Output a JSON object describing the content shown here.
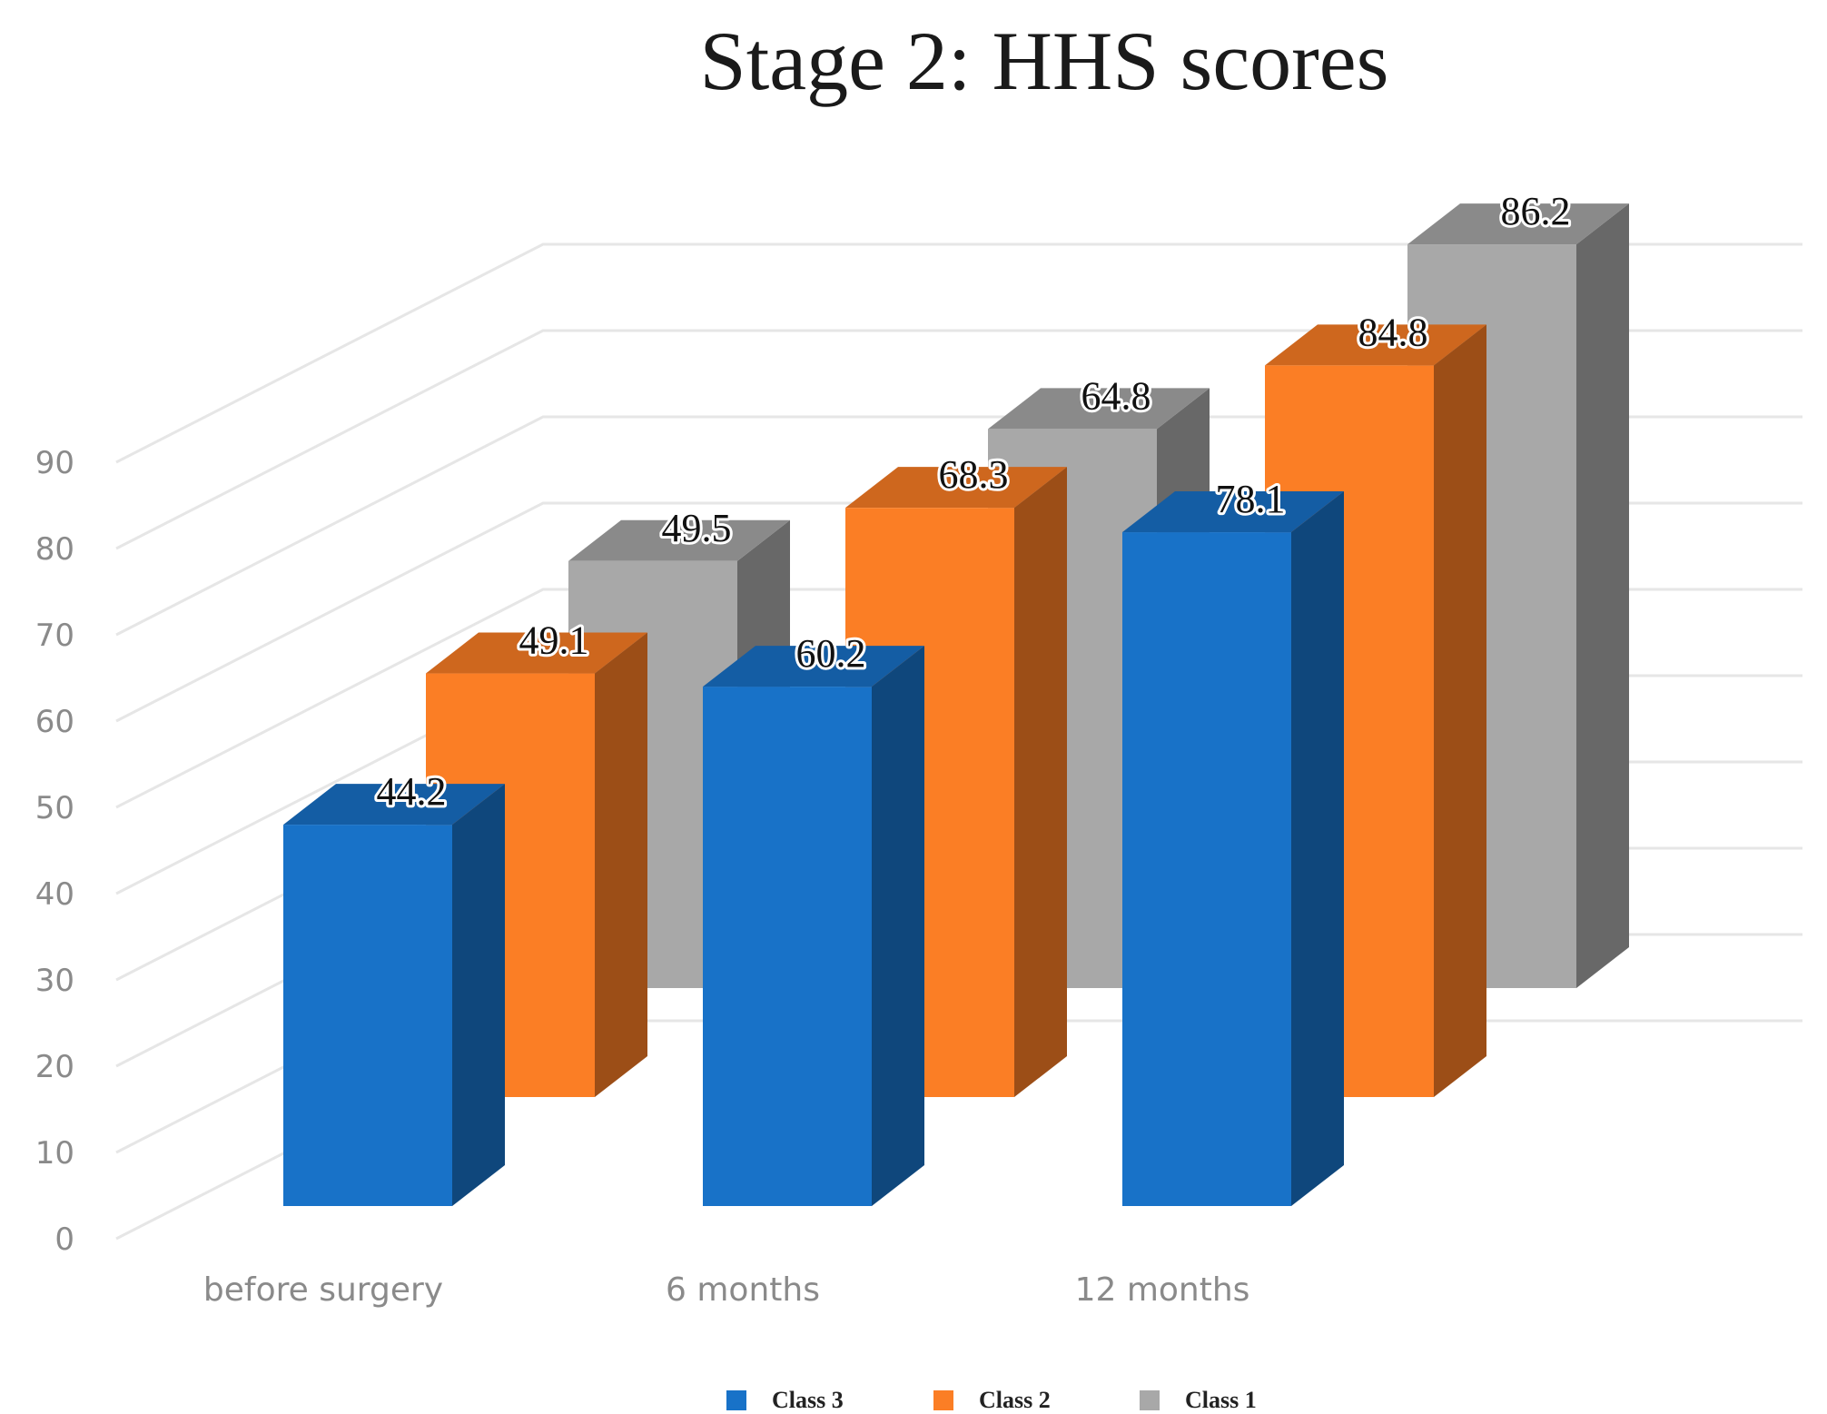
{
  "chart_data": {
    "type": "bar",
    "title": "Stage 2: HHS scores",
    "xlabel": "",
    "ylabel": "",
    "categories": [
      "before surgery",
      "6 months",
      "12 months"
    ],
    "series": [
      {
        "name": "Class 3",
        "values": [
          44.2,
          60.2,
          78.1
        ],
        "color": "#1872c8"
      },
      {
        "name": "Class 2",
        "values": [
          49.1,
          68.3,
          84.8
        ],
        "color": "#fb7e25"
      },
      {
        "name": "Class 1",
        "values": [
          49.5,
          64.8,
          86.2
        ],
        "color": "#a8a8a8"
      }
    ],
    "ylim": [
      0,
      90
    ],
    "yticks": [
      "0",
      "10",
      "20",
      "30",
      "40",
      "50",
      "60",
      "70",
      "80",
      "90"
    ],
    "grid": true,
    "legend_position": "bottom",
    "style": "3d-clustered-column"
  }
}
